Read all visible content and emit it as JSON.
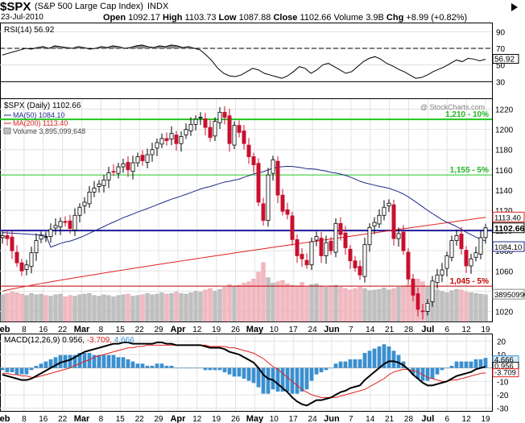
{
  "header": {
    "symbol": "$SPX",
    "name": "(S&P 500 Large Cap Index)",
    "exchange": "INDX",
    "date": "23-Jul-2010",
    "open_label": "Open",
    "open": "1092.17",
    "high_label": "High",
    "high": "1103.73",
    "low_label": "Low",
    "low": "1087.88",
    "close_label": "Close",
    "close": "1102.66",
    "volume": "Volume 3.9B",
    "chg_label": "Chg",
    "chg": "+8.99 (+0.82%)",
    "play_icon": "play-triangle-icon",
    "watermark": "@ StockCharts.com"
  },
  "colors": {
    "up": "#000000",
    "down": "#c8102e",
    "ma50": "#1f2a8a",
    "ma200": "#e02020",
    "green_line": "#22c522",
    "blue_line": "#1a1a9a",
    "volume_up": "#c0c0c0",
    "volume_down": "#f2b8c0",
    "macd_hist": "#3a8fcf"
  },
  "chart_data": [
    {
      "panel": "rsi",
      "type": "line",
      "legend": "RSI(14) 56.92",
      "last_value_label": "56.92",
      "ylim": [
        10,
        100
      ],
      "y_ticks": [
        "90",
        "70",
        "50",
        "30"
      ],
      "reference_lines": [
        70,
        30
      ],
      "values": [
        62,
        64,
        66,
        68,
        70,
        69,
        71,
        72,
        70,
        73,
        72,
        71,
        70,
        72,
        71,
        69,
        70,
        72,
        71,
        73,
        72,
        70,
        71,
        73,
        74,
        72,
        71,
        73,
        72,
        74,
        73,
        71,
        72,
        70,
        68,
        62,
        55,
        46,
        40,
        37,
        36,
        38,
        42,
        46,
        44,
        40,
        38,
        36,
        34,
        37,
        42,
        48,
        46,
        40,
        44,
        50,
        52,
        48,
        44,
        40,
        42,
        48,
        54,
        58,
        60,
        57,
        52,
        49,
        45,
        42,
        38,
        34,
        35,
        38,
        42,
        45,
        48,
        52,
        56,
        54,
        58,
        57,
        55,
        56.92
      ]
    },
    {
      "panel": "price",
      "type": "candlestick",
      "legend": "$SPX (Daily) 1102.66",
      "legend_items": [
        "MA(50) 1084.10",
        "MA(200) 1113.40",
        "Volume 3,895,099,648"
      ],
      "x_tick_labels": [
        "eb",
        "8",
        "16",
        "22",
        "Mar",
        "8",
        "15",
        "22",
        "29",
        "Apr",
        "12",
        "19",
        "26",
        "May",
        "10",
        "17",
        "24",
        "Jun",
        "7",
        "14",
        "21",
        "28",
        "Jul",
        "6",
        "12",
        "19"
      ],
      "y_ticks": [
        "1220",
        "1200",
        "1180",
        "1160",
        "1140",
        "1120",
        "1100",
        "1080",
        "1060",
        "1040",
        "1020"
      ],
      "ylim": [
        1010,
        1230
      ],
      "last_price_label": "1102.66",
      "ma200_label": "1113.40",
      "ma50_label": "1084.10",
      "volume_label": "3895099648",
      "horizontal_lines": [
        {
          "label": "1,210 - 10%",
          "value": 1210
        },
        {
          "label": "1,155 - 5%",
          "value": 1155
        },
        {
          "label": "1,045 - 5%",
          "value": 1045
        },
        {
          "value": 1100
        }
      ],
      "close": [
        1095,
        1092,
        1080,
        1068,
        1060,
        1066,
        1078,
        1090,
        1095,
        1094,
        1101,
        1105,
        1109,
        1108,
        1102,
        1115,
        1123,
        1128,
        1138,
        1142,
        1146,
        1150,
        1157,
        1158,
        1163,
        1166,
        1160,
        1167,
        1173,
        1169,
        1175,
        1180,
        1187,
        1191,
        1189,
        1196,
        1186,
        1193,
        1200,
        1205,
        1210,
        1212,
        1202,
        1192,
        1208,
        1217,
        1212,
        1186,
        1204,
        1197,
        1186,
        1173,
        1165,
        1128,
        1110,
        1155,
        1170,
        1135,
        1119,
        1116,
        1091,
        1075,
        1072,
        1066,
        1089,
        1094,
        1075,
        1088,
        1080,
        1107,
        1096,
        1083,
        1070,
        1063,
        1056,
        1086,
        1103,
        1108,
        1115,
        1123,
        1127,
        1092,
        1097,
        1080,
        1052,
        1036,
        1022,
        1020,
        1028,
        1050,
        1056,
        1061,
        1075,
        1090,
        1095,
        1082,
        1065,
        1072,
        1078,
        1093,
        1102.66
      ],
      "volume_billion": [
        3.9,
        4.1,
        4.3,
        4.2,
        4.0,
        3.8,
        4.1,
        3.9,
        4.0,
        3.8,
        3.7,
        3.9,
        4.0,
        3.6,
        3.8,
        3.7,
        3.9,
        4.0,
        4.1,
        3.8,
        3.7,
        3.9,
        3.8,
        3.6,
        3.8,
        3.9,
        4.0,
        3.7,
        3.8,
        3.9,
        4.1,
        3.9,
        4.0,
        4.2,
        4.0,
        4.1,
        4.3,
        4.1,
        4.0,
        4.2,
        4.4,
        4.3,
        4.6,
        4.8,
        4.4,
        4.7,
        5.0,
        5.4,
        5.1,
        5.3,
        5.6,
        5.8,
        6.2,
        7.2,
        8.6,
        6.4,
        5.6,
        5.8,
        6.0,
        5.5,
        5.3,
        5.2,
        5.7,
        5.0,
        5.4,
        5.5,
        5.1,
        5.0,
        5.2,
        5.3,
        5.0,
        4.8,
        4.6,
        4.8,
        5.0,
        4.8,
        4.5,
        4.6,
        4.7,
        4.9,
        4.6,
        4.8,
        5.0,
        5.2,
        5.4,
        5.6,
        6.2,
        5.8,
        5.0,
        4.8,
        4.6,
        4.4,
        4.2,
        4.5,
        4.7,
        4.6,
        4.3,
        4.2,
        4.1,
        4.0,
        3.9
      ]
    },
    {
      "panel": "macd",
      "type": "line+histogram",
      "legend": "MACD(12,26,9) 0.956, -3.709, 4.666",
      "legend_parts": [
        "MACD(12,26,9) 0.956,",
        "-3.709,",
        "4.666"
      ],
      "last_value_labels": [
        "4.666",
        "0.956",
        "-3.709"
      ],
      "ylim": [
        -32,
        25
      ],
      "y_ticks": [
        "20",
        "10",
        "-10",
        "-20",
        "-30"
      ],
      "x_tick_labels": [
        "eb",
        "8",
        "16",
        "22",
        "Mar",
        "8",
        "15",
        "22",
        "29",
        "Apr",
        "12",
        "19",
        "26",
        "May",
        "10",
        "17",
        "24",
        "Jun",
        "7",
        "14",
        "21",
        "28",
        "Jul",
        "6",
        "12",
        "19"
      ],
      "macd": [
        -5,
        -6,
        -7,
        -8,
        -9,
        -9,
        -8,
        -6,
        -4,
        -2,
        0,
        2,
        4,
        5,
        6,
        8,
        10,
        12,
        13,
        14,
        15,
        16,
        17,
        18,
        18,
        19,
        19,
        18,
        18,
        18,
        18,
        18,
        19,
        19,
        18,
        18,
        17,
        17,
        17,
        17,
        17,
        17,
        16,
        15,
        15,
        15,
        14,
        12,
        11,
        10,
        8,
        6,
        4,
        0,
        -5,
        -8,
        -9,
        -12,
        -15,
        -18,
        -22,
        -25,
        -27,
        -28,
        -26,
        -24,
        -24,
        -23,
        -22,
        -20,
        -18,
        -17,
        -15,
        -14,
        -13,
        -9,
        -6,
        -3,
        0,
        3,
        5,
        5,
        4,
        2,
        -1,
        -5,
        -8,
        -11,
        -13,
        -13,
        -12,
        -11,
        -10,
        -8,
        -6,
        -5,
        -4,
        -3,
        -1,
        0,
        0.956
      ],
      "signal": [
        -4,
        -4,
        -5,
        -5,
        -6,
        -6,
        -7,
        -7,
        -6,
        -5,
        -4,
        -3,
        -2,
        -1,
        0,
        2,
        3,
        5,
        6,
        8,
        9,
        10,
        11,
        12,
        13,
        14,
        15,
        15,
        16,
        16,
        17,
        17,
        17,
        17,
        17,
        17,
        17,
        17,
        17,
        17,
        17,
        17,
        17,
        16,
        16,
        16,
        16,
        15,
        15,
        14,
        13,
        12,
        11,
        9,
        7,
        4,
        1,
        -1,
        -4,
        -7,
        -10,
        -13,
        -16,
        -18,
        -20,
        -21,
        -22,
        -22,
        -22,
        -22,
        -21,
        -20,
        -19,
        -18,
        -17,
        -16,
        -14,
        -12,
        -10,
        -8,
        -5,
        -3,
        -2,
        -1,
        -1,
        -2,
        -3,
        -5,
        -7,
        -8,
        -9,
        -10,
        -10,
        -9,
        -9,
        -8,
        -7,
        -6,
        -5,
        -4,
        -3.709
      ]
    }
  ]
}
